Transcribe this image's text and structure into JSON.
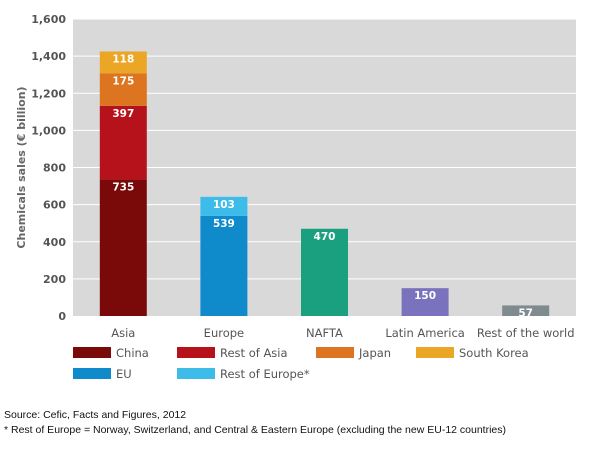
{
  "chart_data": {
    "type": "bar",
    "stacked": true,
    "categories": [
      "Asia",
      "Europe",
      "NAFTA",
      "Latin America",
      "Rest of the world"
    ],
    "ylabel": "Chemicals sales (€ billion)",
    "ylim": [
      0,
      1600
    ],
    "yticks": [
      {
        "value": 0,
        "label": "0"
      },
      {
        "value": 200,
        "label": "200"
      },
      {
        "value": 400,
        "label": "400"
      },
      {
        "value": 600,
        "label": "600"
      },
      {
        "value": 800,
        "label": "800"
      },
      {
        "value": 1000,
        "label": "1,000"
      },
      {
        "value": 1200,
        "label": "1,200"
      },
      {
        "value": 1400,
        "label": "1,400"
      },
      {
        "value": 1600,
        "label": "1,600"
      }
    ],
    "grid": true,
    "legend_position": "bottom",
    "series": [
      {
        "name": "China",
        "color": "#7a0a0a",
        "values": [
          735,
          null,
          null,
          null,
          null
        ]
      },
      {
        "name": "Rest of Asia",
        "color": "#b5121b",
        "values": [
          397,
          null,
          null,
          null,
          null
        ]
      },
      {
        "name": "Japan",
        "color": "#dd7420",
        "values": [
          175,
          null,
          null,
          null,
          null
        ]
      },
      {
        "name": "South Korea",
        "color": "#eba626",
        "values": [
          118,
          null,
          null,
          null,
          null
        ]
      },
      {
        "name": "EU",
        "color": "#0f8acb",
        "values": [
          null,
          539,
          null,
          null,
          null
        ]
      },
      {
        "name": "Rest of Europe*",
        "color": "#3dbcea",
        "values": [
          null,
          103,
          null,
          null,
          null
        ]
      },
      {
        "name": "",
        "color": "#1aa07f",
        "values": [
          null,
          null,
          470,
          null,
          null
        ]
      },
      {
        "name": "",
        "color": "#7b72bd",
        "values": [
          null,
          null,
          null,
          150,
          null
        ]
      },
      {
        "name": "",
        "color": "#7f8b8f",
        "values": [
          null,
          null,
          null,
          null,
          57
        ]
      }
    ],
    "plot_background": "#d9d9d9",
    "grid_color": "#ffffff"
  },
  "source": "Source: Cefic, Facts and Figures, 2012",
  "footnote": "* Rest of Europe = Norway, Switzerland, and Central & Eastern Europe (excluding the new EU-12 countries)"
}
